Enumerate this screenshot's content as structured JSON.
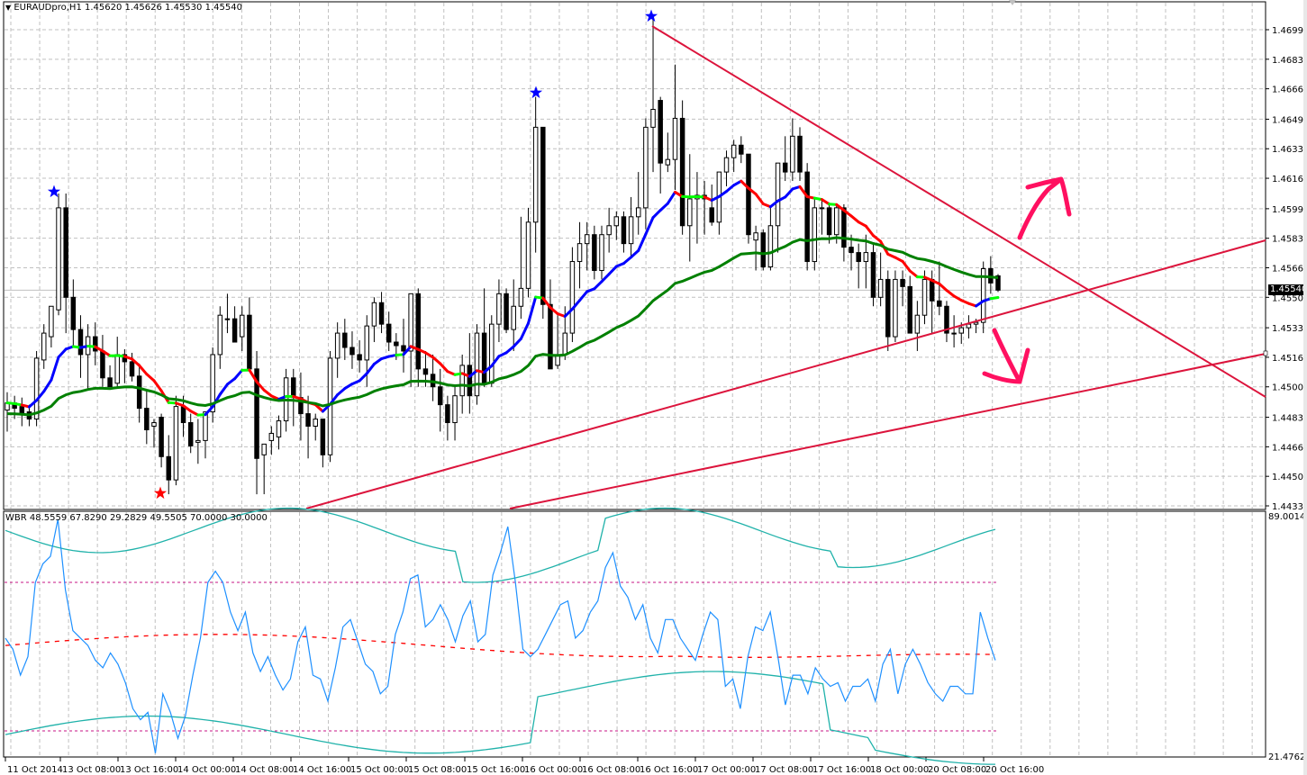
{
  "window": {
    "symbol_info": "EURAUDpro,H1  1.45620 1.45626 1.45530 1.45540",
    "current_price_label": "1.45540"
  },
  "indicator": {
    "info": "WBR 48.5559 67.8290 29.2829 49.5505 70.0000 30.0000",
    "scale_max_label": "89.0014",
    "scale_min_label": "21.4762"
  },
  "colors": {
    "background": "#ffffff",
    "grid": "#c0c0c0",
    "bull_candle_fill": "#ffffff",
    "bear_candle_fill": "#000000",
    "ma_fast_up": "#0000ff",
    "ma_fast_down": "#ff0000",
    "ma_fast_flat": "#00ff00",
    "ma_slow": "#008000",
    "trendline": "#dc143c",
    "arrow_annotation": "#ff1060",
    "star_high": "#0000ff",
    "star_low": "#ff0000",
    "wbr_line": "#1e90ff",
    "wbr_bands": "#20b2aa",
    "wbr_mid": "#ff0000",
    "wbr_levels": "#c71585"
  },
  "chart_data": [
    {
      "type": "candlestick",
      "title": "EURAUDpro,H1",
      "ohlc_header": {
        "open": 1.4562,
        "high": 1.45626,
        "low": 1.4553,
        "close": 1.4554
      },
      "ylim": [
        1.44335,
        1.4708
      ],
      "y_ticks": [
        "1.46995",
        "1.46830",
        "1.46665",
        "1.46495",
        "1.46330",
        "1.46165",
        "1.45995",
        "1.45830",
        "1.45665",
        "1.45500",
        "1.45330",
        "1.45165",
        "1.45000",
        "1.44830",
        "1.44665",
        "1.44500",
        "1.44335"
      ],
      "x_ticks": [
        "11 Oct 2014",
        "13 Oct 08:00",
        "13 Oct 16:00",
        "14 Oct 00:00",
        "14 Oct 08:00",
        "14 Oct 16:00",
        "15 Oct 00:00",
        "15 Oct 08:00",
        "15 Oct 16:00",
        "16 Oct 00:00",
        "16 Oct 08:00",
        "16 Oct 16:00",
        "17 Oct 00:00",
        "17 Oct 08:00",
        "17 Oct 16:00",
        "18 Oct 00:00",
        "20 Oct 08:00",
        "20 Oct 16:00"
      ],
      "current_price": 1.4554,
      "annotations": [
        {
          "type": "star",
          "color": "blue",
          "label": "swing high",
          "price": 1.46063,
          "time": "13 Oct 02:00"
        },
        {
          "type": "star",
          "color": "red",
          "label": "swing low",
          "price": 1.444,
          "time": "13 Oct 20:00"
        },
        {
          "type": "star",
          "color": "blue",
          "label": "swing high",
          "price": 1.4662,
          "time": "15 Oct 23:00"
        },
        {
          "type": "star",
          "color": "blue",
          "label": "swing high",
          "price": 1.47055,
          "time": "16 Oct 15:00"
        },
        {
          "type": "trendline",
          "label": "descending resistance",
          "from_price": 1.46995,
          "to_price": 1.4494
        },
        {
          "type": "trendline",
          "label": "ascending support",
          "from_price": 1.44335,
          "to_price": 1.458
        },
        {
          "type": "trendline",
          "label": "parallel support",
          "from_price": 1.44335,
          "to_price": 1.452
        },
        {
          "type": "arrow",
          "direction": "up",
          "label": "breakout up"
        },
        {
          "type": "arrow",
          "direction": "down",
          "label": "breakout down"
        }
      ],
      "series": [
        {
          "name": "Fast MA (color-coded)",
          "type": "line"
        },
        {
          "name": "Slow MA",
          "type": "line",
          "color": "green"
        }
      ]
    },
    {
      "type": "line",
      "title": "WBR",
      "values_header": [
        48.5559,
        67.829,
        29.2829,
        49.5505,
        70.0,
        30.0
      ],
      "ylim": [
        21.4762,
        89.0014
      ],
      "levels": [
        70,
        30
      ],
      "series": [
        {
          "name": "WBR",
          "color": "#1e90ff"
        },
        {
          "name": "Upper band",
          "color": "#20b2aa"
        },
        {
          "name": "Lower band",
          "color": "#20b2aa"
        },
        {
          "name": "Mid (dashed)",
          "color": "#ff0000"
        }
      ]
    }
  ]
}
